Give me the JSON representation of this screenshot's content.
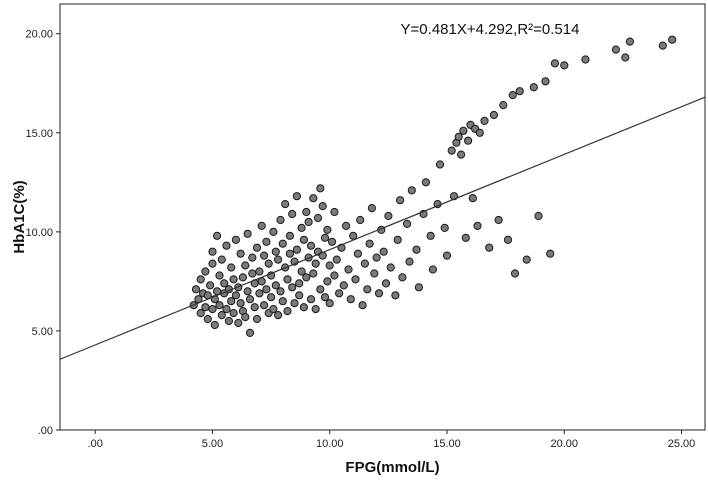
{
  "chart_data": {
    "type": "scatter",
    "xlabel": "FPG(mmol/L)",
    "ylabel": "HbA1C(%)",
    "annotation": "Y=0.481X+4.292,R²=0.514",
    "xlim": [
      -1.5,
      26.0
    ],
    "ylim": [
      0,
      21.5
    ],
    "x_ticks": [
      0,
      5,
      10,
      15,
      20,
      25
    ],
    "x_tick_labels": [
      ".00",
      "5.00",
      "10.00",
      "15.00",
      "20.00",
      "25.00"
    ],
    "y_ticks": [
      0,
      5,
      10,
      15,
      20
    ],
    "y_tick_labels": [
      ".00",
      "5.00",
      "10.00",
      "15.00",
      "20.00"
    ],
    "fit_line": {
      "slope": 0.481,
      "intercept": 4.292
    },
    "point_color": "#7a7a7a",
    "point_edge_color": "#1a1a1a",
    "line_color": "#333333",
    "grid": false,
    "points": [
      [
        4.2,
        6.3
      ],
      [
        4.3,
        7.1
      ],
      [
        4.4,
        6.6
      ],
      [
        4.5,
        5.9
      ],
      [
        4.5,
        7.6
      ],
      [
        4.6,
        6.9
      ],
      [
        4.7,
        6.2
      ],
      [
        4.7,
        8.0
      ],
      [
        4.8,
        5.6
      ],
      [
        4.8,
        6.8
      ],
      [
        4.9,
        7.3
      ],
      [
        5.0,
        6.1
      ],
      [
        5.0,
        8.4
      ],
      [
        5.0,
        9.0
      ],
      [
        5.1,
        6.6
      ],
      [
        5.1,
        5.3
      ],
      [
        5.2,
        7.0
      ],
      [
        5.2,
        9.8
      ],
      [
        5.3,
        6.3
      ],
      [
        5.3,
        7.8
      ],
      [
        5.4,
        5.8
      ],
      [
        5.4,
        8.6
      ],
      [
        5.5,
        6.9
      ],
      [
        5.5,
        7.4
      ],
      [
        5.6,
        6.1
      ],
      [
        5.6,
        9.3
      ],
      [
        5.7,
        5.5
      ],
      [
        5.7,
        7.1
      ],
      [
        5.8,
        6.5
      ],
      [
        5.8,
        8.2
      ],
      [
        5.9,
        7.6
      ],
      [
        5.9,
        5.9
      ],
      [
        6.0,
        6.8
      ],
      [
        6.0,
        9.6
      ],
      [
        6.1,
        7.2
      ],
      [
        6.1,
        5.4
      ],
      [
        6.2,
        8.9
      ],
      [
        6.2,
        6.4
      ],
      [
        6.3,
        7.7
      ],
      [
        6.3,
        6.0
      ],
      [
        6.4,
        8.3
      ],
      [
        6.4,
        5.7
      ],
      [
        6.5,
        7.0
      ],
      [
        6.5,
        9.9
      ],
      [
        6.6,
        6.6
      ],
      [
        6.6,
        4.9
      ],
      [
        6.7,
        7.9
      ],
      [
        6.7,
        8.7
      ],
      [
        6.8,
        6.2
      ],
      [
        6.8,
        7.4
      ],
      [
        6.9,
        9.2
      ],
      [
        6.9,
        5.6
      ],
      [
        7.0,
        6.9
      ],
      [
        7.0,
        8.0
      ],
      [
        7.1,
        7.5
      ],
      [
        7.1,
        10.3
      ],
      [
        7.2,
        6.3
      ],
      [
        7.2,
        8.8
      ],
      [
        7.3,
        7.1
      ],
      [
        7.3,
        9.5
      ],
      [
        7.4,
        5.9
      ],
      [
        7.4,
        8.4
      ],
      [
        7.5,
        6.7
      ],
      [
        7.5,
        7.8
      ],
      [
        7.6,
        10.0
      ],
      [
        7.6,
        6.1
      ],
      [
        7.7,
        9.0
      ],
      [
        7.7,
        7.3
      ],
      [
        7.8,
        8.6
      ],
      [
        7.8,
        5.8
      ],
      [
        7.9,
        10.6
      ],
      [
        7.9,
        7.0
      ],
      [
        8.0,
        9.4
      ],
      [
        8.0,
        6.5
      ],
      [
        8.1,
        8.2
      ],
      [
        8.1,
        11.4
      ],
      [
        8.2,
        7.6
      ],
      [
        8.2,
        6.0
      ],
      [
        8.3,
        9.8
      ],
      [
        8.3,
        8.9
      ],
      [
        8.4,
        7.2
      ],
      [
        8.4,
        10.9
      ],
      [
        8.5,
        6.4
      ],
      [
        8.5,
        8.5
      ],
      [
        8.6,
        9.1
      ],
      [
        8.6,
        11.8
      ],
      [
        8.7,
        7.4
      ],
      [
        8.7,
        6.8
      ],
      [
        8.8,
        10.2
      ],
      [
        8.8,
        8.0
      ],
      [
        8.9,
        9.6
      ],
      [
        8.9,
        6.2
      ],
      [
        9.0,
        11.0
      ],
      [
        9.0,
        7.7
      ],
      [
        9.1,
        8.7
      ],
      [
        9.1,
        10.5
      ],
      [
        9.2,
        6.6
      ],
      [
        9.2,
        9.3
      ],
      [
        9.3,
        11.7
      ],
      [
        9.3,
        7.9
      ],
      [
        9.4,
        8.4
      ],
      [
        9.4,
        6.1
      ],
      [
        9.5,
        10.7
      ],
      [
        9.5,
        9.0
      ],
      [
        9.6,
        12.2
      ],
      [
        9.6,
        7.1
      ],
      [
        9.7,
        8.8
      ],
      [
        9.7,
        11.3
      ],
      [
        9.8,
        6.7
      ],
      [
        9.8,
        9.7
      ],
      [
        9.9,
        7.5
      ],
      [
        9.9,
        10.1
      ],
      [
        10.0,
        8.3
      ],
      [
        10.0,
        6.4
      ],
      [
        10.1,
        9.5
      ],
      [
        10.2,
        7.8
      ],
      [
        10.2,
        11.0
      ],
      [
        10.3,
        8.6
      ],
      [
        10.4,
        6.9
      ],
      [
        10.5,
        9.2
      ],
      [
        10.6,
        7.3
      ],
      [
        10.7,
        10.3
      ],
      [
        10.8,
        8.1
      ],
      [
        10.9,
        6.6
      ],
      [
        11.0,
        9.8
      ],
      [
        11.1,
        7.6
      ],
      [
        11.2,
        8.9
      ],
      [
        11.3,
        10.6
      ],
      [
        11.4,
        6.3
      ],
      [
        11.5,
        8.4
      ],
      [
        11.6,
        7.1
      ],
      [
        11.7,
        9.4
      ],
      [
        11.8,
        11.2
      ],
      [
        11.9,
        7.9
      ],
      [
        12.0,
        8.7
      ],
      [
        12.1,
        6.9
      ],
      [
        12.2,
        10.1
      ],
      [
        12.3,
        9.0
      ],
      [
        12.4,
        7.4
      ],
      [
        12.5,
        10.8
      ],
      [
        12.6,
        8.2
      ],
      [
        12.8,
        6.8
      ],
      [
        12.9,
        9.6
      ],
      [
        13.0,
        11.6
      ],
      [
        13.1,
        7.7
      ],
      [
        13.3,
        10.4
      ],
      [
        13.4,
        8.5
      ],
      [
        13.5,
        12.1
      ],
      [
        13.7,
        9.1
      ],
      [
        13.8,
        7.2
      ],
      [
        14.0,
        10.9
      ],
      [
        14.1,
        12.5
      ],
      [
        14.3,
        9.8
      ],
      [
        14.4,
        8.1
      ],
      [
        14.6,
        11.4
      ],
      [
        14.7,
        13.4
      ],
      [
        14.9,
        10.2
      ],
      [
        15.0,
        8.8
      ],
      [
        15.2,
        14.1
      ],
      [
        15.3,
        11.8
      ],
      [
        15.4,
        14.5
      ],
      [
        15.5,
        14.8
      ],
      [
        15.6,
        13.9
      ],
      [
        15.7,
        15.1
      ],
      [
        15.8,
        9.7
      ],
      [
        15.9,
        14.6
      ],
      [
        16.0,
        15.4
      ],
      [
        16.1,
        11.7
      ],
      [
        16.2,
        15.2
      ],
      [
        16.3,
        10.3
      ],
      [
        16.4,
        15.0
      ],
      [
        16.6,
        15.6
      ],
      [
        16.8,
        9.2
      ],
      [
        17.0,
        15.9
      ],
      [
        17.2,
        10.6
      ],
      [
        17.4,
        16.4
      ],
      [
        17.6,
        9.6
      ],
      [
        17.8,
        16.9
      ],
      [
        17.9,
        7.9
      ],
      [
        18.1,
        17.1
      ],
      [
        18.4,
        8.6
      ],
      [
        18.7,
        17.3
      ],
      [
        18.9,
        10.8
      ],
      [
        19.2,
        17.6
      ],
      [
        19.4,
        8.9
      ],
      [
        19.6,
        18.5
      ],
      [
        20.0,
        18.4
      ],
      [
        20.9,
        18.7
      ],
      [
        22.2,
        19.2
      ],
      [
        22.6,
        18.8
      ],
      [
        22.8,
        19.6
      ],
      [
        24.2,
        19.4
      ],
      [
        24.6,
        19.7
      ]
    ]
  }
}
